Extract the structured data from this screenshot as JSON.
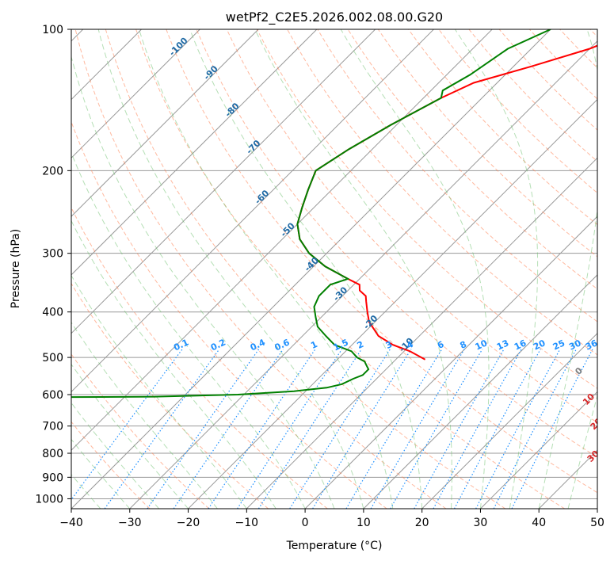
{
  "chart_data": {
    "type": "line",
    "subtype": "skew-T log-P diagram",
    "title": "wetPf2_C2E5.2026.002.08.00.G20",
    "xlabel": "Temperature (°C)",
    "ylabel": "Pressure (hPa)",
    "xlim": [
      -40,
      50
    ],
    "ylim": [
      1050,
      100
    ],
    "x_ticks": [
      -40,
      -30,
      -20,
      -10,
      0,
      10,
      20,
      30,
      40,
      50
    ],
    "x_tick_labels": [
      "−40",
      "−30",
      "−20",
      "−10",
      "0",
      "10",
      "20",
      "30",
      "40",
      "50"
    ],
    "y_ticks": [
      100,
      200,
      300,
      400,
      500,
      600,
      700,
      800,
      900,
      1000
    ],
    "y_tick_labels": [
      "100",
      "200",
      "300",
      "400",
      "500",
      "600",
      "700",
      "800",
      "900",
      "1000"
    ],
    "colors": {
      "temperature": "#ff0000",
      "dewpoint": "#008000",
      "dry_adiabat": "#ff7f50",
      "moist_adiabat": "#6bbf6b",
      "mixing_ratio": "#1e90ff",
      "isotherm_label": "#1f6aa5",
      "moist_label": "#d62728",
      "grid": "#999999"
    },
    "isotherm_labels": [
      "-100",
      "-90",
      "-80",
      "-70",
      "-60",
      "-50",
      "-40",
      "-30",
      "-20",
      "-10"
    ],
    "isotherm_label_points": [
      {
        "t": -100,
        "p": 110
      },
      {
        "t": -90,
        "p": 125
      },
      {
        "t": -80,
        "p": 150
      },
      {
        "t": -70,
        "p": 180
      },
      {
        "t": -60,
        "p": 230
      },
      {
        "t": -50,
        "p": 270
      },
      {
        "t": -40,
        "p": 320
      },
      {
        "t": -30,
        "p": 370
      },
      {
        "t": -20,
        "p": 425
      },
      {
        "t": -10,
        "p": 475
      }
    ],
    "zero_label": "0",
    "zero_label_point": {
      "t": 24,
      "p": 540
    },
    "moist_labels": [
      "10",
      "20",
      "30",
      "40"
    ],
    "moist_label_points": [
      {
        "t": 30.5,
        "p": 620
      },
      {
        "t": 36,
        "p": 700
      },
      {
        "t": 41,
        "p": 820
      },
      {
        "t": 45.8,
        "p": 880
      }
    ],
    "mixing_ratio_labels": [
      "0.1",
      "0.2",
      "0.4",
      "0.6",
      "1",
      "1.5",
      "2",
      "3",
      "4",
      "6",
      "8",
      "10",
      "13",
      "16",
      "20",
      "25",
      "30",
      "36"
    ],
    "mixing_ratio_values": [
      0.1,
      0.2,
      0.4,
      0.6,
      1,
      1.5,
      2,
      3,
      4,
      6,
      8,
      10,
      13,
      16,
      20,
      25,
      30,
      36
    ],
    "mixing_ratio_label_pressure": 480,
    "series": [
      {
        "name": "Temperature",
        "points": [
          [
            100,
            -25
          ],
          [
            110,
            -30
          ],
          [
            120,
            -37
          ],
          [
            130,
            -44
          ],
          [
            140,
            -47
          ],
          [
            160,
            -51
          ],
          [
            180,
            -54
          ],
          [
            200,
            -56
          ],
          [
            220,
            -54
          ],
          [
            240,
            -52
          ],
          [
            260,
            -50
          ],
          [
            280,
            -47
          ],
          [
            300,
            -43
          ],
          [
            320,
            -38
          ],
          [
            340,
            -32
          ],
          [
            350,
            -29
          ],
          [
            360,
            -28
          ],
          [
            370,
            -26
          ],
          [
            380,
            -25
          ],
          [
            400,
            -23
          ],
          [
            420,
            -21
          ],
          [
            450,
            -17
          ],
          [
            470,
            -13
          ],
          [
            485,
            -9
          ],
          [
            495,
            -7
          ],
          [
            505,
            -5
          ]
        ]
      },
      {
        "name": "Dewpoint",
        "points": [
          [
            100,
            -40
          ],
          [
            110,
            -44
          ],
          [
            125,
            -46
          ],
          [
            135,
            -48
          ],
          [
            140,
            -47
          ],
          [
            160,
            -51
          ],
          [
            180,
            -54
          ],
          [
            200,
            -56
          ],
          [
            220,
            -54
          ],
          [
            240,
            -52
          ],
          [
            260,
            -50
          ],
          [
            280,
            -47
          ],
          [
            300,
            -43
          ],
          [
            320,
            -38
          ],
          [
            340,
            -32
          ],
          [
            350,
            -34
          ],
          [
            370,
            -34
          ],
          [
            390,
            -33
          ],
          [
            410,
            -31
          ],
          [
            430,
            -29
          ],
          [
            450,
            -26
          ],
          [
            470,
            -23
          ],
          [
            485,
            -19
          ],
          [
            500,
            -17
          ],
          [
            510,
            -15
          ],
          [
            520,
            -14
          ],
          [
            530,
            -13
          ],
          [
            545,
            -13
          ],
          [
            555,
            -14
          ],
          [
            570,
            -15
          ],
          [
            580,
            -17
          ],
          [
            590,
            -22
          ],
          [
            600,
            -31
          ],
          [
            606,
            -45
          ],
          [
            608,
            -65
          ]
        ]
      }
    ]
  }
}
